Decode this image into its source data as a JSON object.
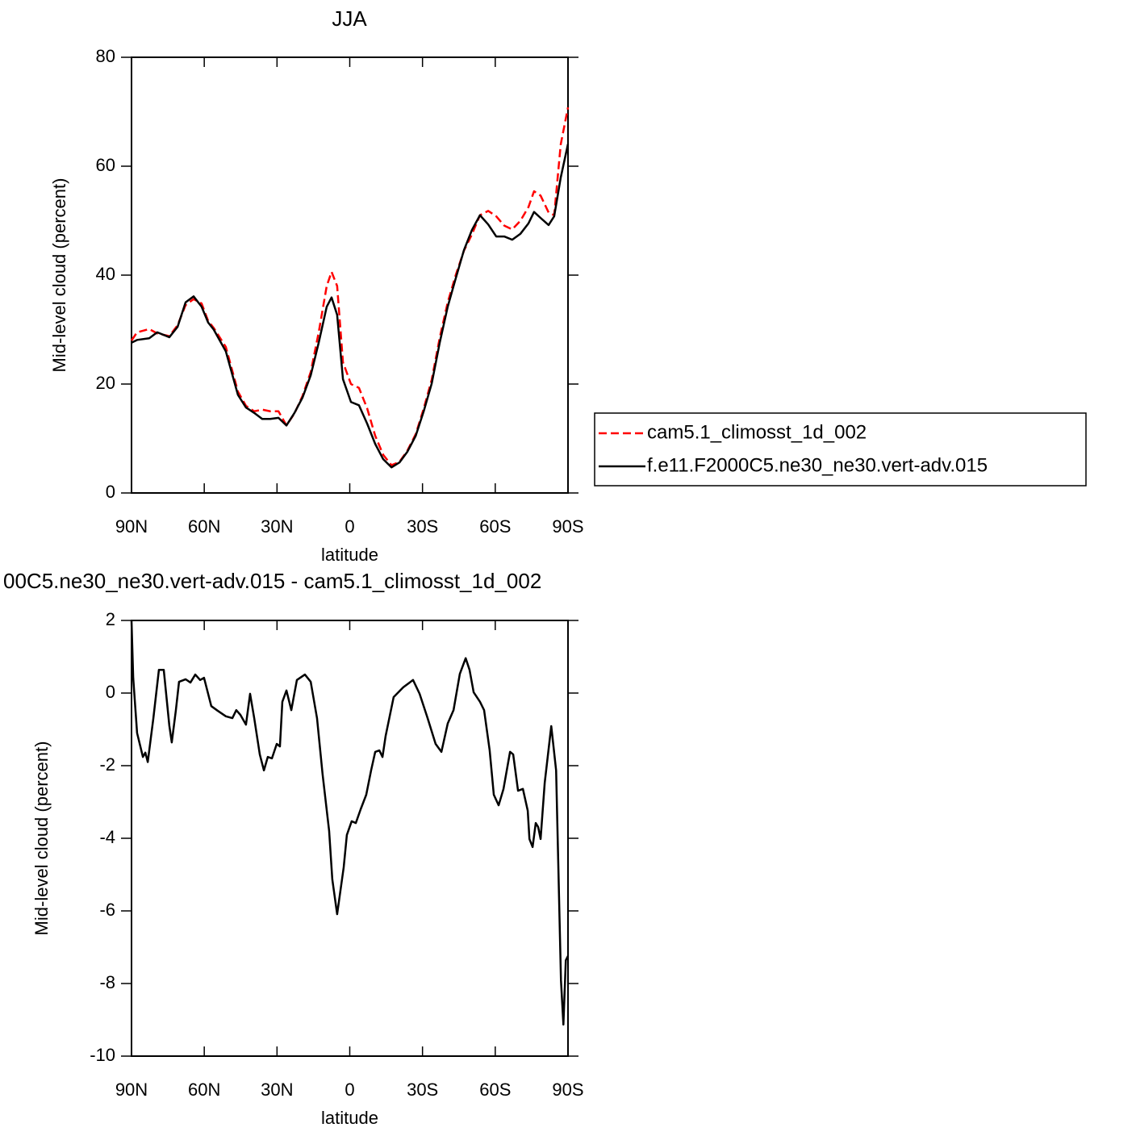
{
  "chart_data": [
    {
      "type": "line",
      "title": "JJA",
      "xlabel": "latitude",
      "ylabel": "Mid-level cloud (percent)",
      "xlim": [
        90,
        -90
      ],
      "ylim": [
        0,
        80
      ],
      "xticks": [
        {
          "value": 90,
          "label": "90N"
        },
        {
          "value": 60,
          "label": "60N"
        },
        {
          "value": 30,
          "label": "30N"
        },
        0,
        {
          "value": -30,
          "label": "30S"
        },
        {
          "value": -60,
          "label": "60S"
        },
        {
          "value": -90,
          "label": "90S"
        }
      ],
      "yticks": [
        0,
        20,
        40,
        60,
        80
      ],
      "legend": "right",
      "x": [
        90,
        87.7,
        82.7,
        79.4,
        74.4,
        71,
        67.7,
        64.4,
        61.1,
        58.4,
        56.1,
        51.1,
        46.1,
        42.8,
        39.4,
        36.1,
        32.8,
        29.4,
        26.1,
        22.8,
        19.5,
        16.1,
        12.8,
        9.5,
        7.5,
        5.2,
        2.8,
        -0.5,
        -3.8,
        -7.2,
        -10.5,
        -13.8,
        -17.2,
        -20.5,
        -23.8,
        -27.2,
        -30.5,
        -33.8,
        -37.1,
        -40.4,
        -43.7,
        -47.1,
        -50.4,
        -53.7,
        -57.1,
        -60.4,
        -63.7,
        -67,
        -70.4,
        -73.7,
        -76,
        -78.7,
        -82,
        -84.3,
        -87,
        -90
      ],
      "series": [
        {
          "name": "cam5.1_climosst_1d_002",
          "color": "#ff0000",
          "dash": "dashed",
          "values": [
            28,
            29.5,
            30.1,
            29.3,
            28.8,
            30.8,
            34.5,
            35.6,
            34.8,
            31.6,
            30.3,
            26.8,
            18.6,
            16,
            15,
            15.3,
            15,
            15,
            12.4,
            14.6,
            17.8,
            22.2,
            29.5,
            38,
            40.6,
            38,
            24,
            20,
            19.3,
            15.5,
            10.5,
            7,
            5.1,
            5.7,
            7.8,
            10.8,
            15.5,
            20.8,
            28.5,
            35,
            40,
            44.5,
            47.5,
            51,
            51.8,
            50.8,
            49.1,
            48.4,
            50,
            52.5,
            55.4,
            54.6,
            51.5,
            51,
            64,
            70.8
          ]
        },
        {
          "name": "f.e11.F2000C5.ne30_ne30.vert-adv.015",
          "color": "#000000",
          "dash": "solid",
          "values": [
            27.6,
            28.1,
            28.4,
            29.5,
            28.6,
            30.5,
            35,
            36.1,
            34.2,
            31.3,
            30,
            26,
            18,
            15.7,
            14.7,
            13.6,
            13.6,
            13.8,
            12.4,
            14.7,
            17.5,
            21.6,
            27.6,
            34.2,
            35.9,
            32.7,
            20.9,
            16.7,
            16.1,
            12.7,
            9,
            6.2,
            4.7,
            5.6,
            7.6,
            10.5,
            15,
            20.1,
            27.6,
            34.2,
            39.4,
            44.6,
            48.3,
            51,
            49.3,
            47.1,
            47.1,
            46.5,
            47.6,
            49.5,
            51.6,
            50.5,
            49.2,
            50.8,
            57.9,
            64.1
          ]
        }
      ]
    },
    {
      "type": "line",
      "title": "00C5.ne30_ne30.vert-adv.015 - cam5.1_climosst_1d_002",
      "xlabel": "latitude",
      "ylabel": "Mid-level cloud (percent)",
      "xlim": [
        90,
        -90
      ],
      "ylim": [
        -10,
        2
      ],
      "xticks": [
        {
          "value": 90,
          "label": "90N"
        },
        {
          "value": 60,
          "label": "60N"
        },
        {
          "value": 30,
          "label": "30N"
        },
        0,
        {
          "value": -30,
          "label": "30S"
        },
        {
          "value": -60,
          "label": "60S"
        },
        {
          "value": -90,
          "label": "90S"
        }
      ],
      "yticks": [
        -10,
        -8,
        -6,
        -4,
        -2,
        0,
        2
      ],
      "x": [
        90,
        89.3,
        87.7,
        85.3,
        84.3,
        83.3,
        81,
        78.7,
        76.7,
        74.4,
        73.4,
        71.7,
        70.4,
        67.7,
        65.7,
        63.7,
        61.7,
        60.1,
        57.1,
        54.4,
        51.1,
        48.4,
        46.8,
        45.1,
        42.8,
        41.1,
        39.4,
        37.1,
        35.4,
        33.8,
        32.1,
        30.1,
        28.8,
        27.8,
        26.1,
        24.1,
        21.8,
        18.5,
        16.1,
        13.5,
        11.2,
        8.5,
        7.2,
        5.2,
        2.5,
        1.2,
        -0.8,
        -2.5,
        -4.5,
        -6.8,
        -8.8,
        -10.5,
        -12.2,
        -13.5,
        -14.8,
        -18.1,
        -22.1,
        -26.1,
        -28.8,
        -32.1,
        -35.4,
        -37.8,
        -40.4,
        -42.8,
        -45.4,
        -47.8,
        -49.4,
        -51.1,
        -53.7,
        -55.4,
        -57.7,
        -59.4,
        -61.4,
        -63.4,
        -66.1,
        -67.4,
        -69.4,
        -71.4,
        -73.4,
        -74.1,
        -75.4,
        -76.7,
        -77.7,
        -78.7,
        -80.4,
        -83.1,
        -85.1,
        -87.1,
        -88.1,
        -89.1,
        -90
      ],
      "series": [
        {
          "color": "#000000",
          "dash": "solid",
          "values": [
            2,
            0.42,
            -1.1,
            -1.76,
            -1.64,
            -1.9,
            -0.7,
            0.64,
            0.64,
            -0.9,
            -1.36,
            -0.47,
            0.31,
            0.38,
            0.29,
            0.51,
            0.36,
            0.42,
            -0.36,
            -0.49,
            -0.64,
            -0.69,
            -0.47,
            -0.6,
            -0.87,
            -0.02,
            -0.69,
            -1.69,
            -2.13,
            -1.76,
            -1.8,
            -1.4,
            -1.47,
            -0.24,
            0.07,
            -0.47,
            0.36,
            0.51,
            0.31,
            -0.69,
            -2.24,
            -3.8,
            -5.13,
            -6.09,
            -4.8,
            -3.91,
            -3.53,
            -3.58,
            -3.2,
            -2.8,
            -2.13,
            -1.62,
            -1.58,
            -1.76,
            -1.18,
            -0.11,
            0.16,
            0.36,
            -0.02,
            -0.69,
            -1.4,
            -1.62,
            -0.84,
            -0.47,
            0.53,
            0.96,
            0.64,
            0.02,
            -0.24,
            -0.47,
            -1.58,
            -2.8,
            -3.09,
            -2.64,
            -1.62,
            -1.69,
            -2.69,
            -2.64,
            -3.24,
            -4.02,
            -4.24,
            -3.58,
            -3.69,
            -4.02,
            -2.47,
            -0.91,
            -2.13,
            -7.91,
            -9.13,
            -7.36,
            -7.24
          ]
        }
      ]
    }
  ]
}
